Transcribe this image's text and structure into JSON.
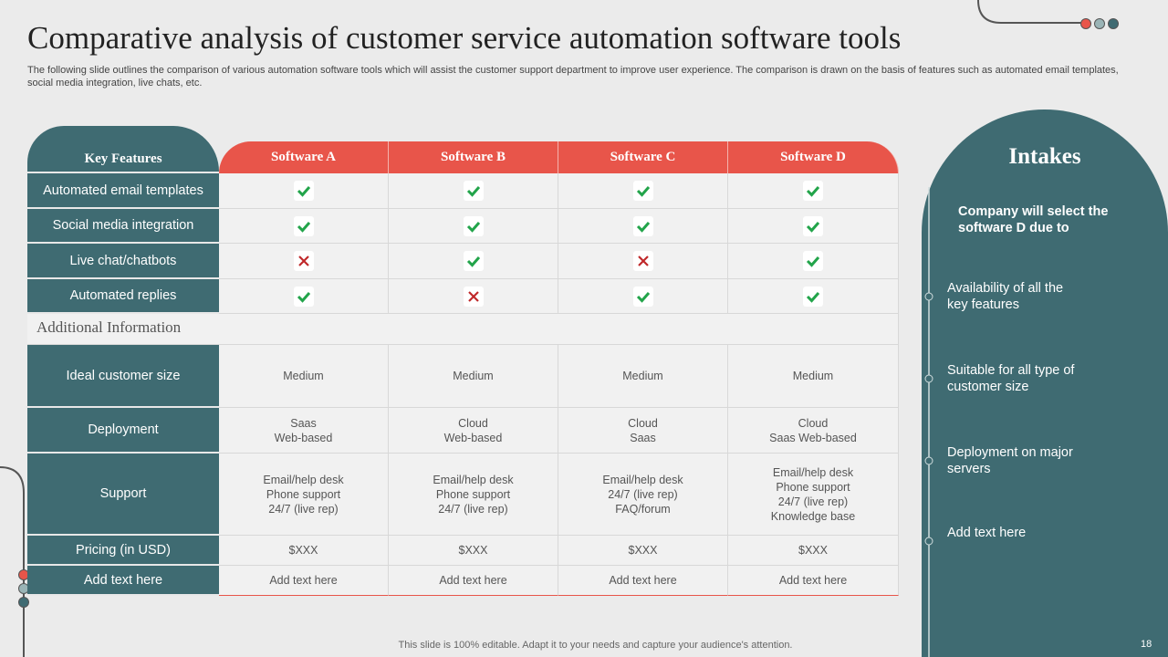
{
  "title": "Comparative analysis of customer service automation software tools",
  "subtitle": "The following slide outlines the comparison of various automation software tools which will assist the customer support department to improve user experience. The comparison is drawn on the basis of features such as automated email templates, social media integration, live chats, etc.",
  "table": {
    "headers": [
      "Key Features",
      "Software A",
      "Software B",
      "Software C",
      "Software D"
    ],
    "feature_rows": [
      {
        "label": "Automated email templates",
        "marks": [
          true,
          true,
          true,
          true
        ]
      },
      {
        "label": "Social media integration",
        "marks": [
          true,
          true,
          true,
          true
        ]
      },
      {
        "label": "Live chat/chatbots",
        "marks": [
          false,
          true,
          false,
          true
        ]
      },
      {
        "label": "Automated replies",
        "marks": [
          true,
          false,
          true,
          true
        ]
      }
    ],
    "additional_label": "Additional Information",
    "info_rows": [
      {
        "label": "Ideal customer size",
        "cells": [
          [
            "Medium"
          ],
          [
            "Medium"
          ],
          [
            "Medium"
          ],
          [
            "Medium"
          ]
        ]
      },
      {
        "label": "Deployment",
        "cells": [
          [
            "Saas",
            "Web-based"
          ],
          [
            "Cloud",
            "Web-based"
          ],
          [
            "Cloud",
            "Saas"
          ],
          [
            "Cloud",
            "Saas Web-based"
          ]
        ]
      },
      {
        "label": "Support",
        "cells": [
          [
            "Email/help desk",
            "Phone support",
            "24/7 (live rep)"
          ],
          [
            "Email/help desk",
            "Phone support",
            "24/7 (live rep)"
          ],
          [
            "Email/help desk",
            "24/7 (live rep)",
            "FAQ/forum"
          ],
          [
            "Email/help desk",
            "Phone support",
            "24/7 (live rep)",
            "Knowledge base"
          ]
        ]
      },
      {
        "label": "Pricing (in USD)",
        "cells": [
          [
            "$XXX"
          ],
          [
            "$XXX"
          ],
          [
            "$XXX"
          ],
          [
            "$XXX"
          ]
        ]
      },
      {
        "label": "Add text here",
        "cells": [
          [
            "Add text here"
          ],
          [
            "Add text here"
          ],
          [
            "Add text here"
          ],
          [
            "Add text here"
          ]
        ]
      }
    ]
  },
  "intakes": {
    "title": "Intakes",
    "heading": "Company will select the software D due to",
    "items": [
      "Availability  of all the key features",
      "Suitable for all type of customer size",
      "Deployment on major servers",
      "Add text here"
    ]
  },
  "footer": "This slide is 100% editable. Adapt it to your needs and capture your audience's attention.",
  "page_number": "18"
}
